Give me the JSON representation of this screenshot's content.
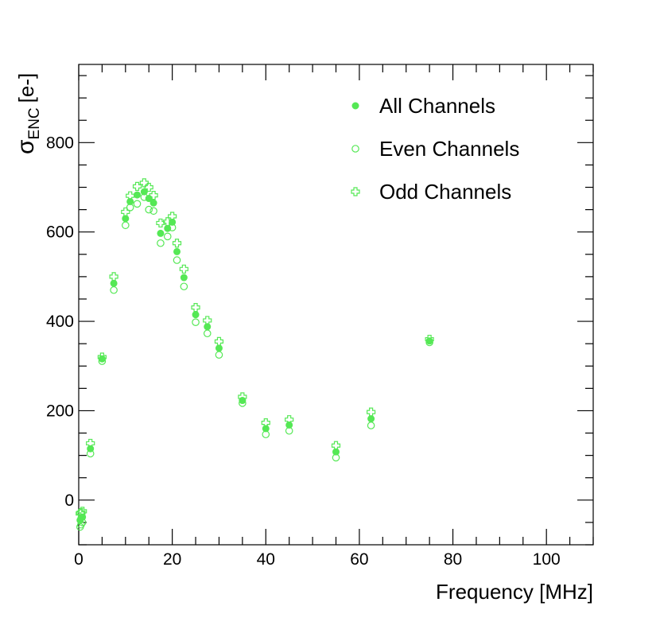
{
  "chart_data": {
    "type": "scatter",
    "title": "",
    "xlabel": "Frequency [MHz]",
    "ylabel_symbol": "σ",
    "ylabel_subscript": "ENC",
    "ylabel_unit": "[e-]",
    "xlim": [
      0,
      110
    ],
    "ylim": [
      -100,
      975
    ],
    "x_ticks": [
      {
        "value": 0,
        "label": "0"
      },
      {
        "value": 20,
        "label": "20"
      },
      {
        "value": 40,
        "label": "40"
      },
      {
        "value": 60,
        "label": "60"
      },
      {
        "value": 80,
        "label": "80"
      },
      {
        "value": 100,
        "label": "100"
      }
    ],
    "y_ticks": [
      {
        "value": 0,
        "label": "0"
      },
      {
        "value": 200,
        "label": "200"
      },
      {
        "value": 400,
        "label": "400"
      },
      {
        "value": 600,
        "label": "600"
      },
      {
        "value": 800,
        "label": "800"
      }
    ],
    "x_minor_step": 5,
    "y_minor_step": 50,
    "grid": false,
    "legend_position": "top-right",
    "color": "#55e855",
    "series": [
      {
        "name": "All Channels",
        "marker": "filled-circle",
        "points": [
          [
            0.3,
            -45
          ],
          [
            0.5,
            -40
          ],
          [
            0.8,
            -38
          ],
          [
            2.5,
            115
          ],
          [
            5,
            316
          ],
          [
            7.5,
            485
          ],
          [
            10,
            630
          ],
          [
            11,
            668
          ],
          [
            12.5,
            683
          ],
          [
            14,
            690
          ],
          [
            15,
            675
          ],
          [
            16,
            665
          ],
          [
            17.5,
            597
          ],
          [
            19,
            608
          ],
          [
            20,
            622
          ],
          [
            21,
            556
          ],
          [
            22.5,
            498
          ],
          [
            25,
            415
          ],
          [
            27.5,
            388
          ],
          [
            30,
            340
          ],
          [
            35,
            223
          ],
          [
            40,
            160
          ],
          [
            45,
            168
          ],
          [
            55,
            108
          ],
          [
            62.5,
            182
          ],
          [
            75,
            356
          ]
        ]
      },
      {
        "name": "Even Channels",
        "marker": "open-circle",
        "points": [
          [
            0.3,
            -60
          ],
          [
            0.5,
            -55
          ],
          [
            0.8,
            -50
          ],
          [
            2.5,
            104
          ],
          [
            5,
            311
          ],
          [
            7.5,
            470
          ],
          [
            10,
            615
          ],
          [
            11,
            655
          ],
          [
            12.5,
            663
          ],
          [
            14,
            678
          ],
          [
            15,
            650
          ],
          [
            16,
            647
          ],
          [
            17.5,
            575
          ],
          [
            19,
            590
          ],
          [
            20,
            610
          ],
          [
            21,
            537
          ],
          [
            22.5,
            478
          ],
          [
            25,
            398
          ],
          [
            27.5,
            373
          ],
          [
            30,
            325
          ],
          [
            35,
            217
          ],
          [
            40,
            147
          ],
          [
            45,
            155
          ],
          [
            55,
            95
          ],
          [
            62.5,
            167
          ],
          [
            75,
            353
          ]
        ]
      },
      {
        "name": "Odd Channels",
        "marker": "open-cross",
        "points": [
          [
            0.3,
            -30
          ],
          [
            0.5,
            -28
          ],
          [
            0.8,
            -25
          ],
          [
            2.5,
            127
          ],
          [
            5,
            320
          ],
          [
            7.5,
            500
          ],
          [
            10,
            645
          ],
          [
            11,
            681
          ],
          [
            12.5,
            702
          ],
          [
            14,
            710
          ],
          [
            15,
            700
          ],
          [
            16,
            682
          ],
          [
            17.5,
            620
          ],
          [
            19,
            623
          ],
          [
            20,
            635
          ],
          [
            21,
            575
          ],
          [
            22.5,
            517
          ],
          [
            25,
            431
          ],
          [
            27.5,
            402
          ],
          [
            30,
            355
          ],
          [
            35,
            231
          ],
          [
            40,
            173
          ],
          [
            45,
            180
          ],
          [
            55,
            122
          ],
          [
            62.5,
            197
          ],
          [
            75,
            360
          ]
        ]
      }
    ]
  }
}
